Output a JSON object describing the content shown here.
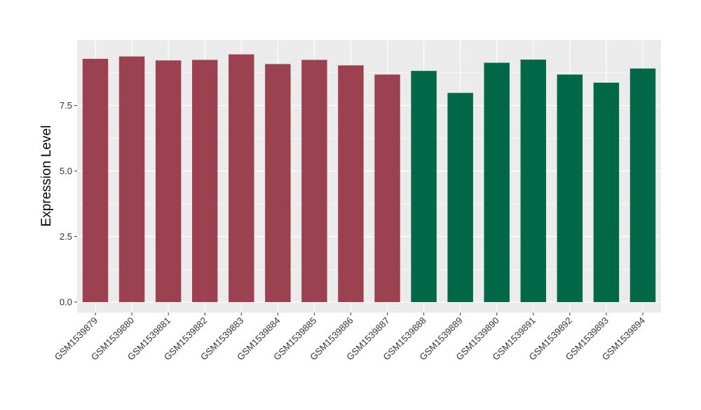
{
  "chart_data": {
    "type": "bar",
    "title": "",
    "xlabel": "",
    "ylabel": "Expression Level",
    "ylim": [
      -0.4,
      10.0
    ],
    "yticks": [
      0.0,
      2.5,
      5.0,
      7.5
    ],
    "ytick_labels": [
      "0.0",
      "2.5",
      "5.0",
      "7.5"
    ],
    "grid": true,
    "legend": "none",
    "categories": [
      "GSM1539879",
      "GSM1539880",
      "GSM1539881",
      "GSM1539882",
      "GSM1539883",
      "GSM1539884",
      "GSM1539885",
      "GSM1539886",
      "GSM1539887",
      "GSM1539888",
      "GSM1539889",
      "GSM1539890",
      "GSM1539891",
      "GSM1539892",
      "GSM1539893",
      "GSM1539894"
    ],
    "values": [
      9.28,
      9.37,
      9.22,
      9.24,
      9.45,
      9.08,
      9.24,
      9.03,
      8.68,
      8.82,
      7.98,
      9.13,
      9.25,
      8.68,
      8.37,
      8.91
    ],
    "bar_colors": [
      "#9b4150",
      "#9b4150",
      "#9b4150",
      "#9b4150",
      "#9b4150",
      "#9b4150",
      "#9b4150",
      "#9b4150",
      "#9b4150",
      "#006846",
      "#006846",
      "#006846",
      "#006846",
      "#006846",
      "#006846",
      "#006846"
    ],
    "panel_background": "#ebebeb",
    "grid_color": "#ffffff"
  }
}
